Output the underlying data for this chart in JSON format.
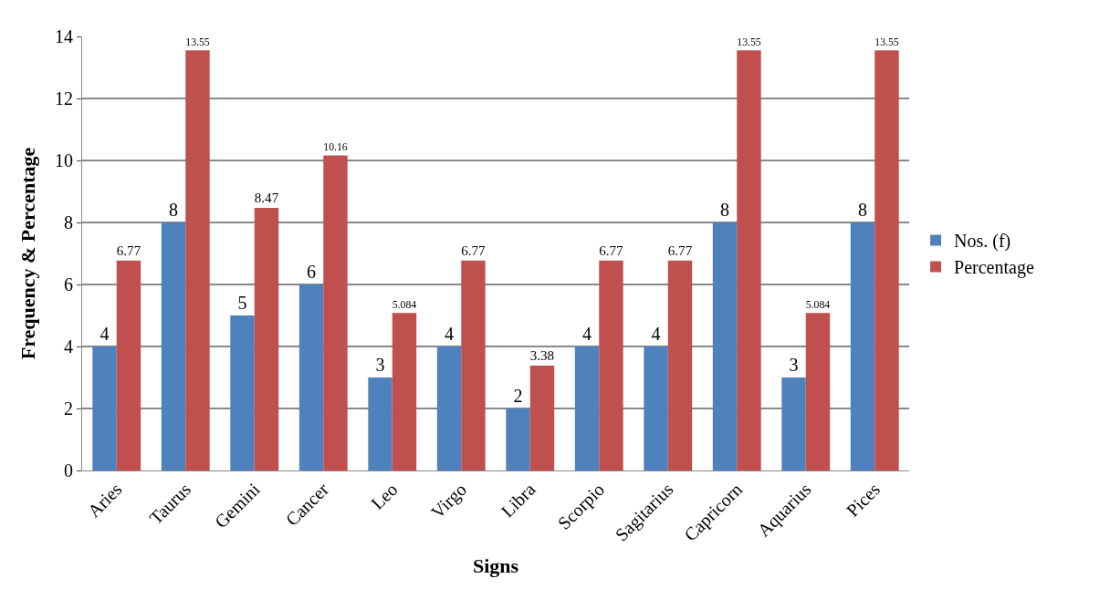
{
  "chart_data": {
    "type": "bar",
    "xlabel": "Signs",
    "ylabel": "Frequency & Percentage",
    "categories": [
      "Aries",
      "Taurus",
      "Gemini",
      "Cancer",
      "Leo",
      "Virgo",
      "Libra",
      "Scorpio",
      "Sagitarius",
      "Capricorn",
      "Aquarius",
      "Pices"
    ],
    "series": [
      {
        "name": "Nos. (f)",
        "color": "#4f81bd",
        "values": [
          4,
          8,
          5,
          6,
          3,
          4,
          2,
          4,
          4,
          8,
          3,
          8
        ]
      },
      {
        "name": "Percentage",
        "color": "#c0504d",
        "values": [
          6.77,
          13.55,
          8.47,
          10.16,
          5.084,
          6.77,
          3.38,
          6.77,
          6.77,
          13.55,
          5.084,
          13.55
        ]
      }
    ],
    "ylim": [
      0,
      14
    ],
    "yticks": [
      0,
      2,
      4,
      6,
      8,
      10,
      12,
      14
    ],
    "grid": "y",
    "legend": "right",
    "data_labels": true
  }
}
